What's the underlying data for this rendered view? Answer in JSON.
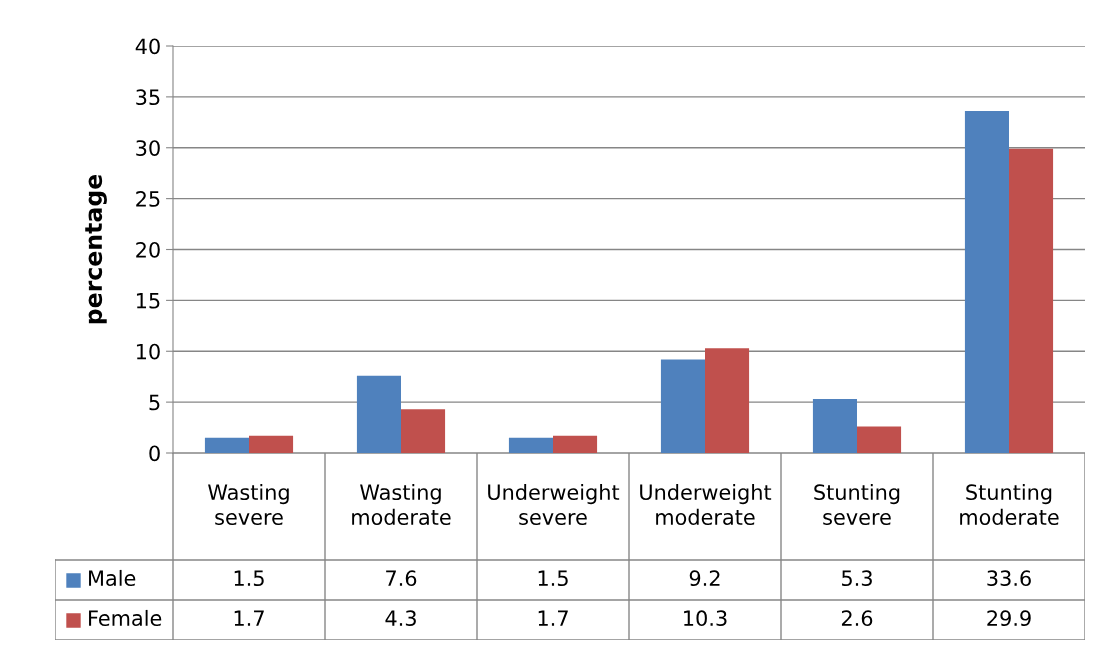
{
  "chart_data": {
    "type": "bar",
    "ylabel": "percentage",
    "categories": [
      "Wasting severe",
      "Wasting moderate",
      "Underweight severe",
      "Underweight moderate",
      "Stunting severe",
      "Stunting moderate"
    ],
    "series": [
      {
        "name": "Male",
        "color": "#4f81bd",
        "values": [
          1.5,
          7.6,
          1.5,
          9.2,
          5.3,
          33.6
        ]
      },
      {
        "name": "Female",
        "color": "#c0504d",
        "values": [
          1.7,
          4.3,
          1.7,
          10.3,
          2.6,
          29.9
        ]
      }
    ],
    "ylim": [
      0,
      40
    ],
    "yticks": [
      0,
      5,
      10,
      15,
      20,
      25,
      30,
      35,
      40
    ],
    "grid": "y",
    "legend": "bottom",
    "data_labels": true
  }
}
